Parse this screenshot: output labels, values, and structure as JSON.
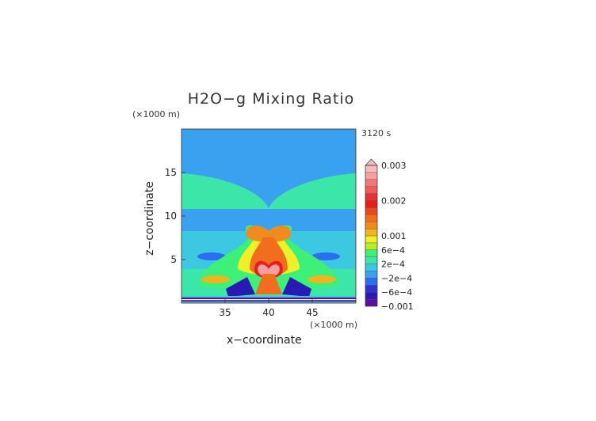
{
  "chart_data": {
    "type": "heatmap",
    "title": "H2O−g Mixing Ratio",
    "xlabel": "x−coordinate",
    "ylabel": "z−coordinate",
    "x_unit": "(×1000 m)",
    "y_unit": "(×1000 m)",
    "time_label": "3120 s",
    "xlim": [
      30,
      50
    ],
    "ylim": [
      0,
      20
    ],
    "x_ticks": [
      35,
      40,
      45
    ],
    "y_ticks": [
      5,
      10,
      15
    ],
    "grid": false,
    "colorbar": {
      "extend": "max",
      "levels": [
        -0.001,
        -0.0008,
        -0.0006,
        -0.0004,
        -0.0002,
        0,
        0.0002,
        0.0004,
        0.0006,
        0.0008,
        0.001,
        0.0012,
        0.0014,
        0.0016,
        0.0018,
        0.002,
        0.0022,
        0.0024,
        0.0026,
        0.0028,
        0.003
      ],
      "colors": [
        "#5a0da0",
        "#2a1ab4",
        "#3232d2",
        "#2c6ef0",
        "#3aa0f0",
        "#3cc8e0",
        "#3ce6a8",
        "#3cf078",
        "#b4f028",
        "#f0f028",
        "#f0b41e",
        "#f08c1e",
        "#f06e1e",
        "#f0461e",
        "#e61e1e",
        "#e63232",
        "#f05a5a",
        "#f07878",
        "#f5a0a0",
        "#f8bcbc"
      ],
      "tick_labels": [
        "0.003",
        "0.002",
        "0.001",
        "6e−4",
        "2e−4",
        "−2e−4",
        "−6e−4",
        "−0.001"
      ],
      "tick_values": [
        0.003,
        0.002,
        0.001,
        0.0006,
        0.0002,
        -0.0002,
        -0.0006,
        -0.001
      ]
    }
  }
}
